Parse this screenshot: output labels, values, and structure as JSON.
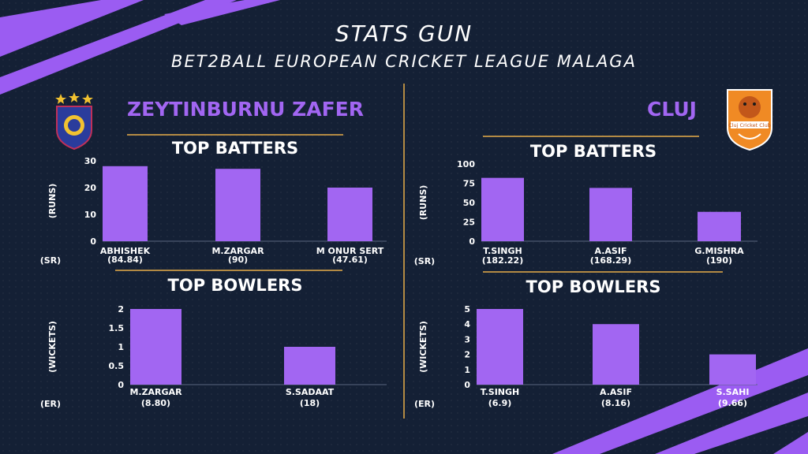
{
  "header": {
    "title": "STATS GUN",
    "subtitle": "BET2BALL EUROPEAN CRICKET LEAGUE MALAGA"
  },
  "teams": {
    "left": {
      "name": "ZEYTINBURNU ZAFER"
    },
    "right": {
      "name": "CLUJ",
      "logo_text": "Cluj Cricket Club"
    }
  },
  "colors": {
    "bar": "#a266f2",
    "accent_gold": "#b38a44",
    "background": "#142035",
    "stripe": "#9b5cf2"
  },
  "chart_data": [
    {
      "id": "left-batters",
      "type": "bar",
      "title": "TOP BATTERS",
      "ylabel": "(RUNS)",
      "xlabel": "(SR)",
      "ylim": [
        0,
        30
      ],
      "yticks": [
        0,
        10,
        20,
        30
      ],
      "categories": [
        "ABHISHEK",
        "M.ZARGAR",
        "M ONUR SERT"
      ],
      "sublabels": [
        "(84.84)",
        "(90)",
        "(47.61)"
      ],
      "values": [
        28,
        27,
        20
      ]
    },
    {
      "id": "left-bowlers",
      "type": "bar",
      "title": "TOP BOWLERS",
      "ylabel": "(WICKETS)",
      "xlabel": "(ER)",
      "ylim": [
        0,
        2
      ],
      "yticks": [
        0,
        0.5,
        1,
        1.5,
        2
      ],
      "categories": [
        "M.ZARGAR",
        "S.SADAAT"
      ],
      "sublabels": [
        "(8.80)",
        "(18)"
      ],
      "values": [
        2,
        1
      ]
    },
    {
      "id": "right-batters",
      "type": "bar",
      "title": "TOP BATTERS",
      "ylabel": "(RUNS)",
      "xlabel": "(SR)",
      "ylim": [
        0,
        100
      ],
      "yticks": [
        0,
        25,
        50,
        75,
        100
      ],
      "categories": [
        "T.SINGH",
        "A.ASIF",
        "G.MISHRA"
      ],
      "sublabels": [
        "(182.22)",
        "(168.29)",
        "(190)"
      ],
      "values": [
        82,
        69,
        38
      ]
    },
    {
      "id": "right-bowlers",
      "type": "bar",
      "title": "TOP BOWLERS",
      "ylabel": "(WICKETS)",
      "xlabel": "(ER)",
      "ylim": [
        0,
        5
      ],
      "yticks": [
        0,
        1,
        2,
        3,
        4,
        5
      ],
      "categories": [
        "T.SINGH",
        "A.ASIF",
        "S.SAHI"
      ],
      "sublabels": [
        "(6.9)",
        "(8.16)",
        "(9.66)"
      ],
      "values": [
        5,
        4,
        2
      ]
    }
  ]
}
